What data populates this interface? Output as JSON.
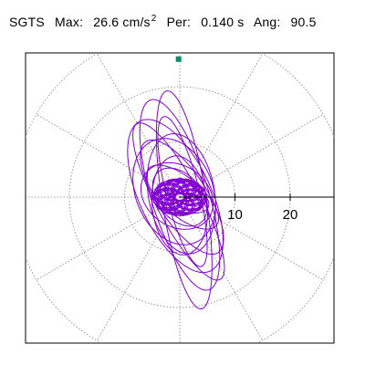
{
  "header": {
    "station": "SGTS",
    "max_label": "Max:",
    "max_value": "26.6 cm/s",
    "max_exp": "2",
    "per_label": "Per:",
    "per_value": "0.140 s",
    "ang_label": "Ang:",
    "ang_value": "90.5"
  },
  "chart_data": {
    "type": "polar-orbit",
    "ring_labels": [
      "10",
      "20"
    ],
    "rings": [
      10,
      20,
      30
    ],
    "radial_angles_deg": [
      30,
      60,
      120,
      150,
      210,
      240,
      300,
      330
    ],
    "colors": {
      "trace": "#8000d0",
      "marker": "#009070",
      "grid": "#808080",
      "axis": "#000000"
    },
    "max_acceleration": 26.6,
    "max_direction_deg": 90.5,
    "period_s": 0.14,
    "orbit_loops": [
      {
        "a": 20,
        "b": 4.0,
        "tilt": 99,
        "cx": 0.8,
        "cy": -0.5
      },
      {
        "a": 18,
        "b": 5.2,
        "tilt": 107,
        "cx": 0.0,
        "cy": 0.4
      },
      {
        "a": 15,
        "b": 6.5,
        "tilt": 115,
        "cx": -0.8,
        "cy": 0.2
      },
      {
        "a": 12,
        "b": 4.5,
        "tilt": 123,
        "cx": 0.4,
        "cy": 0.0
      },
      {
        "a": 10,
        "b": 7.0,
        "tilt": 112,
        "cx": -1.0,
        "cy": 1.0
      },
      {
        "a": 8,
        "b": 3.5,
        "tilt": 140,
        "cx": 0.5,
        "cy": 0.0
      },
      {
        "a": 9,
        "b": 5.0,
        "tilt": 96,
        "cx": 0.0,
        "cy": -1.5
      },
      {
        "a": 14,
        "b": 3.0,
        "tilt": 104,
        "cx": 0.5,
        "cy": 1.0
      },
      {
        "a": 6,
        "b": 4.0,
        "tilt": 130,
        "cx": 0.0,
        "cy": 0.0
      },
      {
        "a": 5,
        "b": 2.5,
        "tilt": 160,
        "cx": 0.5,
        "cy": 0.0
      },
      {
        "a": 4,
        "b": 3.0,
        "tilt": 170,
        "cx": 0.0,
        "cy": 0.0
      },
      {
        "a": 16,
        "b": 4.0,
        "tilt": 118,
        "cx": -0.2,
        "cy": -0.8
      },
      {
        "a": 11,
        "b": 6.0,
        "tilt": 100,
        "cx": 0.3,
        "cy": 0.6
      },
      {
        "a": 7,
        "b": 5.5,
        "tilt": 145,
        "cx": -0.5,
        "cy": 0.2
      }
    ]
  }
}
